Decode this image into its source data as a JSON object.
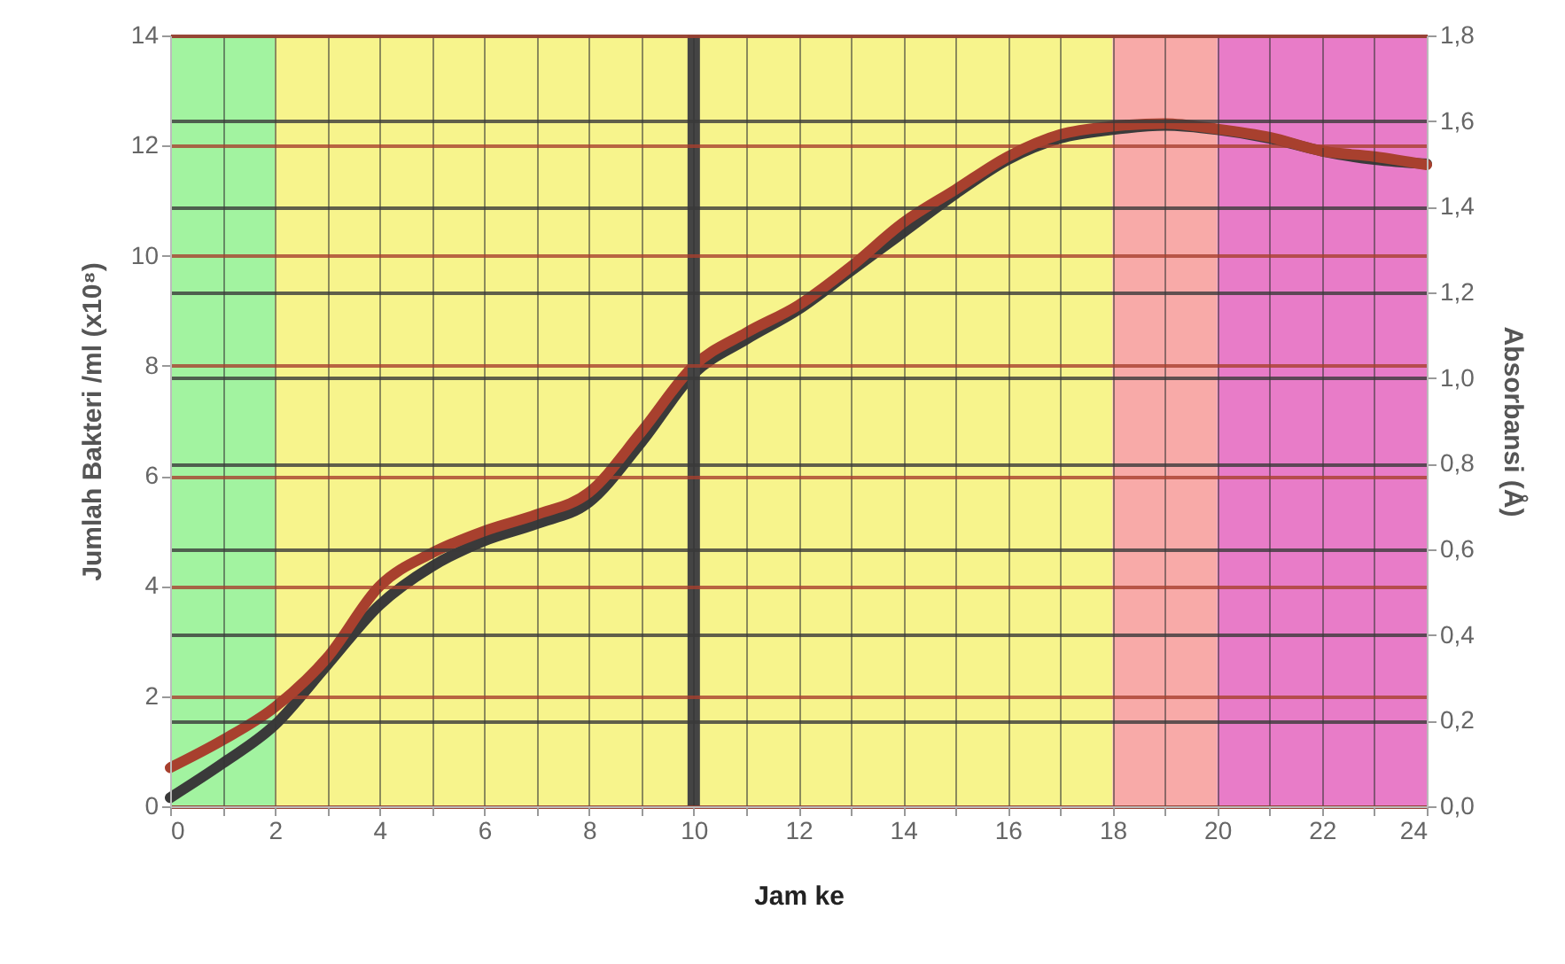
{
  "chart_data": {
    "type": "line",
    "xlabel": "Jam ke",
    "ylabel": "Jumlah Bakteri /ml (x10⁸)",
    "y2label": "Absorbansi (Å)",
    "x": [
      0,
      1,
      2,
      3,
      4,
      5,
      6,
      7,
      8,
      9,
      10,
      11,
      12,
      13,
      14,
      15,
      16,
      17,
      18,
      19,
      20,
      21,
      22,
      23,
      24
    ],
    "series": [
      {
        "color": "#3a3a3a",
        "axis": "y2",
        "values": [
          0.02,
          0.1,
          0.19,
          0.33,
          0.47,
          0.56,
          0.62,
          0.66,
          0.71,
          0.85,
          1.01,
          1.09,
          1.16,
          1.25,
          1.34,
          1.43,
          1.51,
          1.56,
          1.58,
          1.59,
          1.58,
          1.56,
          1.53,
          1.51,
          1.5
        ]
      },
      {
        "color": "#a8402e",
        "values": [
          0.7,
          1.2,
          1.8,
          2.7,
          4.0,
          4.6,
          5.0,
          5.3,
          5.7,
          6.8,
          8.0,
          8.6,
          9.1,
          9.8,
          10.6,
          11.2,
          11.8,
          12.2,
          12.35,
          12.4,
          12.3,
          12.15,
          11.9,
          11.8,
          11.65
        ]
      }
    ],
    "xlim": [
      0,
      24
    ],
    "xticks": [
      0,
      {
        "value": 1,
        "label": null
      },
      2,
      {
        "value": 3,
        "label": null
      },
      4,
      {
        "value": 5,
        "label": null
      },
      6,
      {
        "value": 7,
        "label": null
      },
      8,
      {
        "value": 9,
        "label": null
      },
      10,
      {
        "value": 11,
        "label": null
      },
      12,
      {
        "value": 13,
        "label": null
      },
      14,
      {
        "value": 15,
        "label": null
      },
      16,
      {
        "value": 17,
        "label": null
      },
      18,
      {
        "value": 19,
        "label": null
      },
      20,
      {
        "value": 21,
        "label": null
      },
      22,
      {
        "value": 23,
        "label": null
      },
      24
    ],
    "ylim": [
      0,
      14
    ],
    "yticks": [
      0,
      2,
      4,
      6,
      8,
      10,
      12,
      14
    ],
    "y2lim": [
      0,
      1.8
    ],
    "y2ticks": [
      {
        "value": 0,
        "label": "0,0"
      },
      {
        "value": 0.2,
        "label": "0,2"
      },
      {
        "value": 0.4,
        "label": "0,4"
      },
      {
        "value": 0.6,
        "label": "0,6"
      },
      {
        "value": 0.8,
        "label": "0,8"
      },
      {
        "value": 1,
        "label": "1,0"
      },
      {
        "value": 1.2,
        "label": "1,2"
      },
      {
        "value": 1.4,
        "label": "1,4"
      },
      {
        "value": 1.6,
        "label": "1,6"
      },
      {
        "value": 1.8,
        "label": "1,8"
      }
    ],
    "bands": [
      {
        "axis": "x",
        "from": 0,
        "to": 2,
        "color": "#a2f3a0"
      },
      {
        "axis": "x",
        "from": 2,
        "to": 18,
        "color": "#f7f48c"
      },
      {
        "axis": "x",
        "from": 18,
        "to": 20,
        "color": "#f8aaa8"
      },
      {
        "axis": "x",
        "from": 20,
        "to": 24,
        "color": "#e87cc8"
      }
    ],
    "ref_lines": [
      {
        "axis": "x",
        "value": 10,
        "color": "#444444"
      }
    ],
    "grid": true,
    "legend": false,
    "marker": "none"
  }
}
